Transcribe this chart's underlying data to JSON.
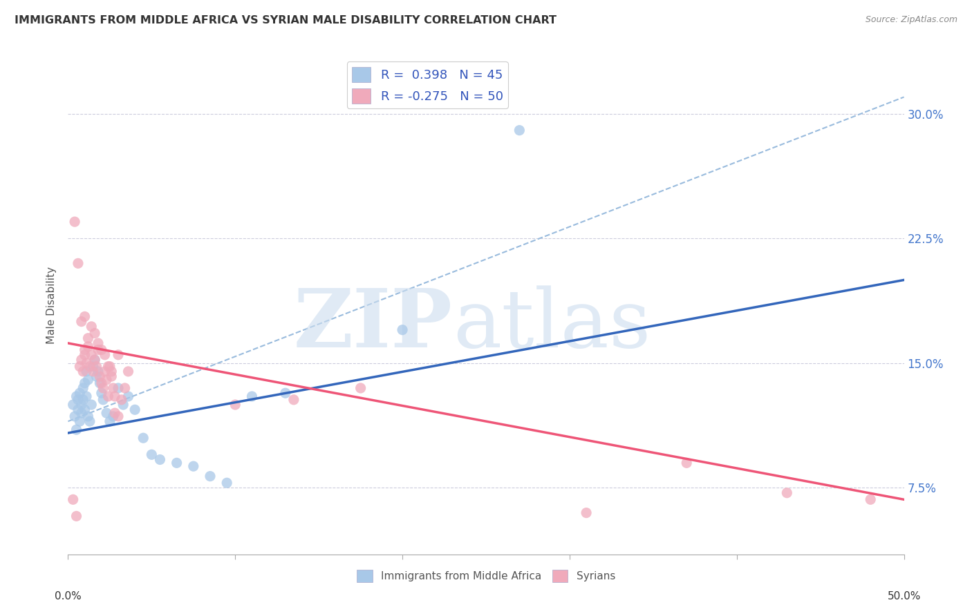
{
  "title": "IMMIGRANTS FROM MIDDLE AFRICA VS SYRIAN MALE DISABILITY CORRELATION CHART",
  "source": "Source: ZipAtlas.com",
  "ylabel": "Male Disability",
  "yticks": [
    "7.5%",
    "15.0%",
    "22.5%",
    "30.0%"
  ],
  "ytick_vals": [
    0.075,
    0.15,
    0.225,
    0.3
  ],
  "xlim": [
    0.0,
    0.5
  ],
  "ylim": [
    0.035,
    0.335
  ],
  "r_blue": 0.398,
  "n_blue": 45,
  "r_pink": -0.275,
  "n_pink": 50,
  "blue_color": "#a8c8e8",
  "pink_color": "#f0aabb",
  "line_blue": "#3366bb",
  "line_pink": "#ee5577",
  "line_dashed": "#99bbdd",
  "blue_scatter_x": [
    0.003,
    0.004,
    0.005,
    0.005,
    0.006,
    0.006,
    0.007,
    0.007,
    0.008,
    0.008,
    0.009,
    0.009,
    0.01,
    0.01,
    0.011,
    0.011,
    0.012,
    0.012,
    0.013,
    0.014,
    0.015,
    0.016,
    0.017,
    0.018,
    0.019,
    0.02,
    0.021,
    0.023,
    0.025,
    0.027,
    0.03,
    0.033,
    0.036,
    0.04,
    0.045,
    0.05,
    0.055,
    0.065,
    0.075,
    0.085,
    0.095,
    0.11,
    0.13,
    0.2,
    0.27
  ],
  "blue_scatter_y": [
    0.125,
    0.118,
    0.13,
    0.11,
    0.122,
    0.128,
    0.115,
    0.132,
    0.12,
    0.125,
    0.128,
    0.135,
    0.138,
    0.122,
    0.145,
    0.13,
    0.14,
    0.118,
    0.115,
    0.125,
    0.148,
    0.152,
    0.142,
    0.145,
    0.138,
    0.132,
    0.128,
    0.12,
    0.115,
    0.118,
    0.135,
    0.125,
    0.13,
    0.122,
    0.105,
    0.095,
    0.092,
    0.09,
    0.088,
    0.082,
    0.078,
    0.13,
    0.132,
    0.17,
    0.29
  ],
  "pink_scatter_x": [
    0.003,
    0.005,
    0.006,
    0.007,
    0.008,
    0.009,
    0.01,
    0.01,
    0.011,
    0.012,
    0.013,
    0.014,
    0.015,
    0.016,
    0.017,
    0.018,
    0.019,
    0.02,
    0.021,
    0.022,
    0.023,
    0.024,
    0.025,
    0.026,
    0.027,
    0.028,
    0.03,
    0.032,
    0.034,
    0.036,
    0.008,
    0.01,
    0.012,
    0.014,
    0.016,
    0.018,
    0.02,
    0.022,
    0.024,
    0.026,
    0.028,
    0.03,
    0.1,
    0.135,
    0.175,
    0.37,
    0.43,
    0.004,
    0.31,
    0.48
  ],
  "pink_scatter_y": [
    0.068,
    0.058,
    0.21,
    0.148,
    0.152,
    0.145,
    0.155,
    0.158,
    0.15,
    0.16,
    0.148,
    0.155,
    0.145,
    0.152,
    0.148,
    0.158,
    0.142,
    0.138,
    0.135,
    0.145,
    0.14,
    0.13,
    0.148,
    0.142,
    0.135,
    0.13,
    0.155,
    0.128,
    0.135,
    0.145,
    0.175,
    0.178,
    0.165,
    0.172,
    0.168,
    0.162,
    0.158,
    0.155,
    0.148,
    0.145,
    0.12,
    0.118,
    0.125,
    0.128,
    0.135,
    0.09,
    0.072,
    0.235,
    0.06,
    0.068
  ],
  "blue_line_x0": 0.0,
  "blue_line_x1": 0.5,
  "blue_line_y0": 0.108,
  "blue_line_y1": 0.2,
  "pink_line_x0": 0.0,
  "pink_line_x1": 0.5,
  "pink_line_y0": 0.162,
  "pink_line_y1": 0.068,
  "dash_line_x0": 0.0,
  "dash_line_x1": 0.5,
  "dash_line_y0": 0.115,
  "dash_line_y1": 0.31
}
